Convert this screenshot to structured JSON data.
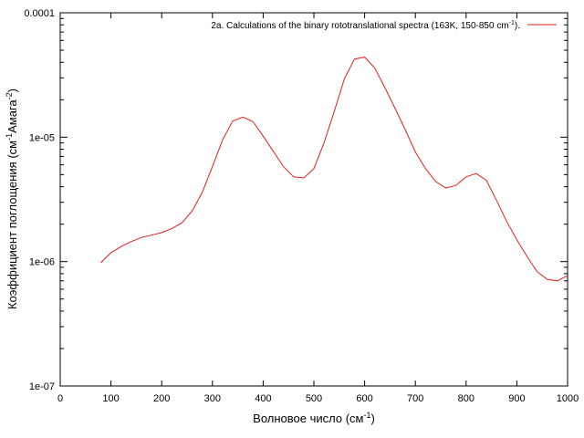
{
  "chart_data": {
    "type": "line",
    "title": "",
    "xlabel": "Волновое число (см",
    "xlabel_sup": "-1",
    "xlabel_end": ")",
    "ylabel": "Коэффициент поглощения (см",
    "ylabel_sup1": "-1",
    "ylabel_mid": "Амага",
    "ylabel_sup2": "-2",
    "ylabel_end": ")",
    "xlim": [
      0,
      1000
    ],
    "ylim": [
      1e-07,
      0.0001
    ],
    "yscale": "log",
    "grid": false,
    "legend_position": "top-right",
    "x_ticks": [
      0,
      100,
      200,
      300,
      400,
      500,
      600,
      700,
      800,
      900,
      1000
    ],
    "x_tick_labels": [
      "0",
      "100",
      "200",
      "300",
      "400",
      "500",
      "600",
      "700",
      "800",
      "900",
      "1000"
    ],
    "y_ticks": [
      1e-07,
      1e-06,
      1e-05,
      0.0001
    ],
    "y_tick_labels": [
      "1e-07",
      "1e-06",
      "1e-05",
      "0.0001"
    ],
    "series": [
      {
        "name": "2a. Calculations of the binary rototranslational spectra  (163K, 150-850 cm",
        "name_sup": "-1",
        "name_end": ").",
        "color": "#e0201b",
        "x": [
          80,
          100,
          120,
          140,
          160,
          180,
          200,
          220,
          240,
          260,
          280,
          300,
          320,
          340,
          360,
          380,
          400,
          420,
          440,
          460,
          480,
          500,
          520,
          540,
          560,
          580,
          600,
          620,
          640,
          660,
          680,
          700,
          720,
          740,
          760,
          780,
          800,
          820,
          840,
          860,
          880,
          900,
          920,
          940,
          960,
          980,
          1000
        ],
        "y": [
          9.8e-07,
          1.18e-06,
          1.32e-06,
          1.45e-06,
          1.56e-06,
          1.63e-06,
          1.71e-06,
          1.84e-06,
          2.05e-06,
          2.55e-06,
          3.6e-06,
          5.8e-06,
          9.5e-06,
          1.35e-05,
          1.45e-05,
          1.33e-05,
          1.02e-05,
          7.7e-06,
          5.8e-06,
          4.8e-06,
          4.7e-06,
          5.6e-06,
          9e-06,
          1.6e-05,
          2.95e-05,
          4.25e-05,
          4.4e-05,
          3.6e-05,
          2.5e-05,
          1.7e-05,
          1.15e-05,
          7.6e-06,
          5.6e-06,
          4.4e-06,
          3.9e-06,
          4.1e-06,
          4.8e-06,
          5.1e-06,
          4.5e-06,
          3.1e-06,
          2.1e-06,
          1.5e-06,
          1.1e-06,
          8.3e-07,
          7.2e-07,
          7e-07,
          7.7e-07
        ]
      }
    ]
  }
}
